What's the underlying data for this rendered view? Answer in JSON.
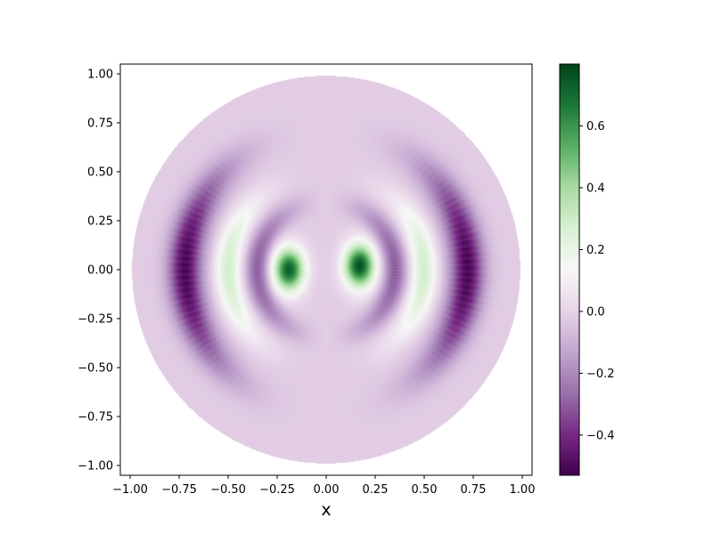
{
  "chart_data": {
    "type": "heatmap",
    "title": "",
    "xlabel": "x",
    "ylabel": "",
    "xlim": [
      -1.05,
      1.05
    ],
    "ylim": [
      -1.05,
      1.05
    ],
    "x_ticks": [
      -1.0,
      -0.75,
      -0.5,
      -0.25,
      0.0,
      0.25,
      0.5,
      0.75,
      1.0
    ],
    "x_tick_labels": [
      "−1.00",
      "−0.75",
      "−0.50",
      "−0.25",
      "0.00",
      "0.25",
      "0.50",
      "0.75",
      "1.00"
    ],
    "y_ticks": [
      1.0,
      0.75,
      0.5,
      0.25,
      0.0,
      -0.25,
      -0.5,
      -0.75,
      -1.0
    ],
    "y_tick_labels": [
      "1.00",
      "0.75",
      "0.50",
      "0.25",
      "0.00",
      "−0.25",
      "−0.50",
      "−0.75",
      "−1.00"
    ],
    "grid": false,
    "domain": "unit disk",
    "colormap": "PRGn",
    "colormap_stops": [
      "#40004b",
      "#762a83",
      "#9970ab",
      "#c2a5cf",
      "#e7d4e8",
      "#f7f7f7",
      "#d9f0d3",
      "#a6dba0",
      "#5aae61",
      "#1b7837",
      "#00441b"
    ],
    "clim": [
      -0.53,
      0.8
    ],
    "colorbar": {
      "ticks": [
        0.6,
        0.4,
        0.2,
        0.0,
        -0.2,
        -0.4
      ],
      "tick_labels": [
        "0.6",
        "0.4",
        "0.2",
        "0.0",
        "−0.2",
        "−0.4"
      ]
    },
    "features": [
      {
        "name": "positive peak left",
        "x": -0.19,
        "y": 0.0,
        "value": 0.75
      },
      {
        "name": "positive peak right",
        "x": 0.17,
        "y": 0.02,
        "value": 0.78
      },
      {
        "name": "negative ring inner",
        "radius": 0.35,
        "value": -0.3
      },
      {
        "name": "positive ring",
        "radius": 0.5,
        "value": 0.3
      },
      {
        "name": "negative ring outer",
        "radius": 0.72,
        "value": -0.5
      },
      {
        "name": "background",
        "value": -0.02
      }
    ]
  }
}
